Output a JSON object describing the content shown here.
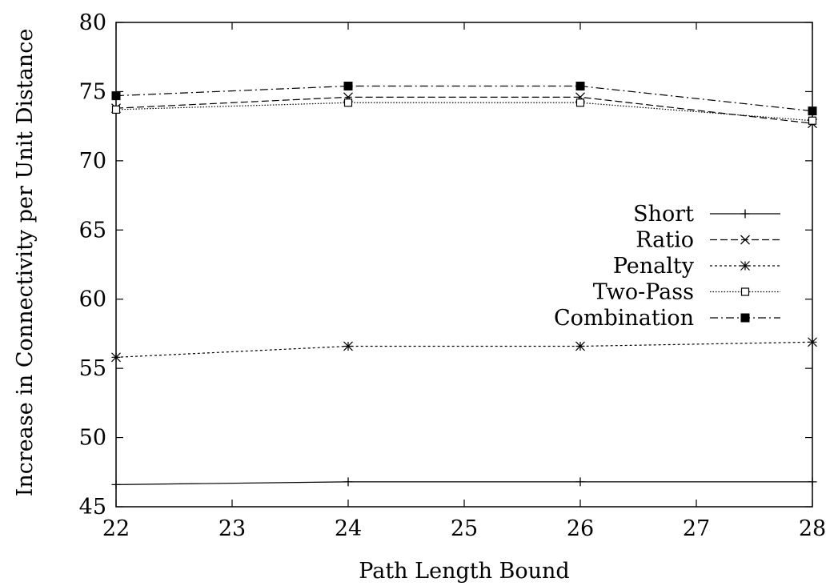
{
  "chart_data": {
    "type": "line",
    "xlabel": "Path Length Bound",
    "ylabel": "Increase in Connectivity per Unit Distance",
    "xlim": [
      22,
      28
    ],
    "ylim": [
      45,
      80
    ],
    "x_ticks": [
      "22",
      "23",
      "24",
      "25",
      "26",
      "27",
      "28"
    ],
    "y_ticks": [
      "45",
      "50",
      "55",
      "60",
      "65",
      "70",
      "75",
      "80"
    ],
    "grid": false,
    "legend_position": "right",
    "x": [
      22,
      24,
      26,
      28
    ],
    "series": [
      {
        "name": "Short",
        "values": [
          46.6,
          46.8,
          46.8,
          46.8
        ],
        "marker": "plus",
        "dash": "solid",
        "color": "#000000"
      },
      {
        "name": "Ratio",
        "values": [
          73.8,
          74.6,
          74.6,
          72.7
        ],
        "marker": "cross",
        "dash": "dashed",
        "color": "#000000"
      },
      {
        "name": "Penalty",
        "values": [
          55.8,
          56.6,
          56.6,
          56.9
        ],
        "marker": "star",
        "dash": "dotted-short",
        "color": "#000000"
      },
      {
        "name": "Two-Pass",
        "values": [
          73.7,
          74.2,
          74.2,
          72.9
        ],
        "marker": "open-square",
        "dash": "dotted",
        "color": "#000000"
      },
      {
        "name": "Combination",
        "values": [
          74.7,
          75.4,
          75.4,
          73.6
        ],
        "marker": "filled-square",
        "dash": "dash-dot",
        "color": "#000000"
      }
    ]
  }
}
